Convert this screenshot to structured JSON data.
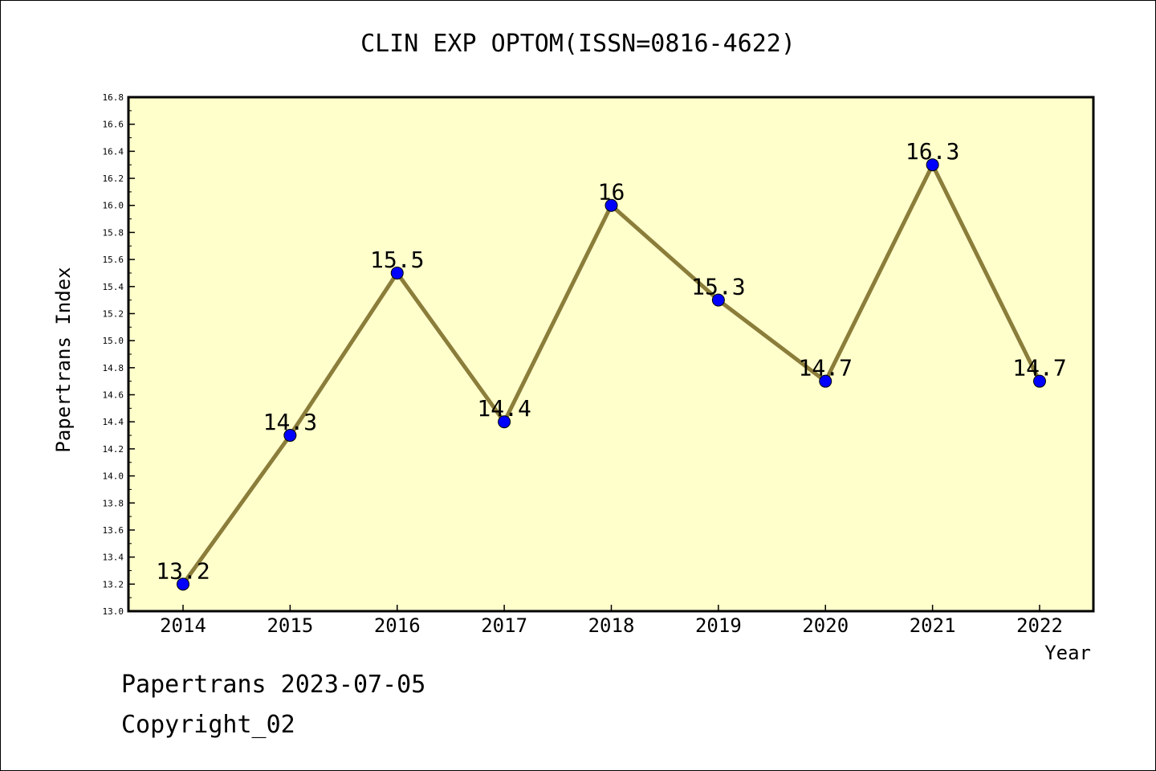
{
  "chart_data": {
    "type": "line",
    "title": "CLIN EXP OPTOM(ISSN=0816-4622)",
    "xlabel": "Year",
    "ylabel": "Papertrans Index",
    "categories": [
      "2014",
      "2015",
      "2016",
      "2017",
      "2018",
      "2019",
      "2020",
      "2021",
      "2022"
    ],
    "values": [
      13.2,
      14.3,
      15.5,
      14.4,
      16.0,
      15.3,
      14.7,
      16.3,
      14.7
    ],
    "data_labels": [
      "13.2",
      "14.3",
      "15.5",
      "14.4",
      "16",
      "15.3",
      "14.7",
      "16.3",
      "14.7"
    ],
    "y_ticks": [
      "13.0",
      "13.2",
      "13.4",
      "13.6",
      "13.8",
      "14.0",
      "14.2",
      "14.4",
      "14.6",
      "14.8",
      "15.0",
      "15.2",
      "15.4",
      "15.6",
      "15.8",
      "16.0",
      "16.2",
      "16.4",
      "16.6",
      "16.8"
    ],
    "ylim": [
      13.0,
      16.8
    ],
    "grid": false,
    "legend": "none",
    "colors": {
      "plot_background": "#ffffcc",
      "line": "#8b7d3a",
      "marker": "#0000ff"
    }
  },
  "footer": {
    "date_line": "Papertrans 2023-07-05",
    "copyright": "Copyright_02"
  }
}
